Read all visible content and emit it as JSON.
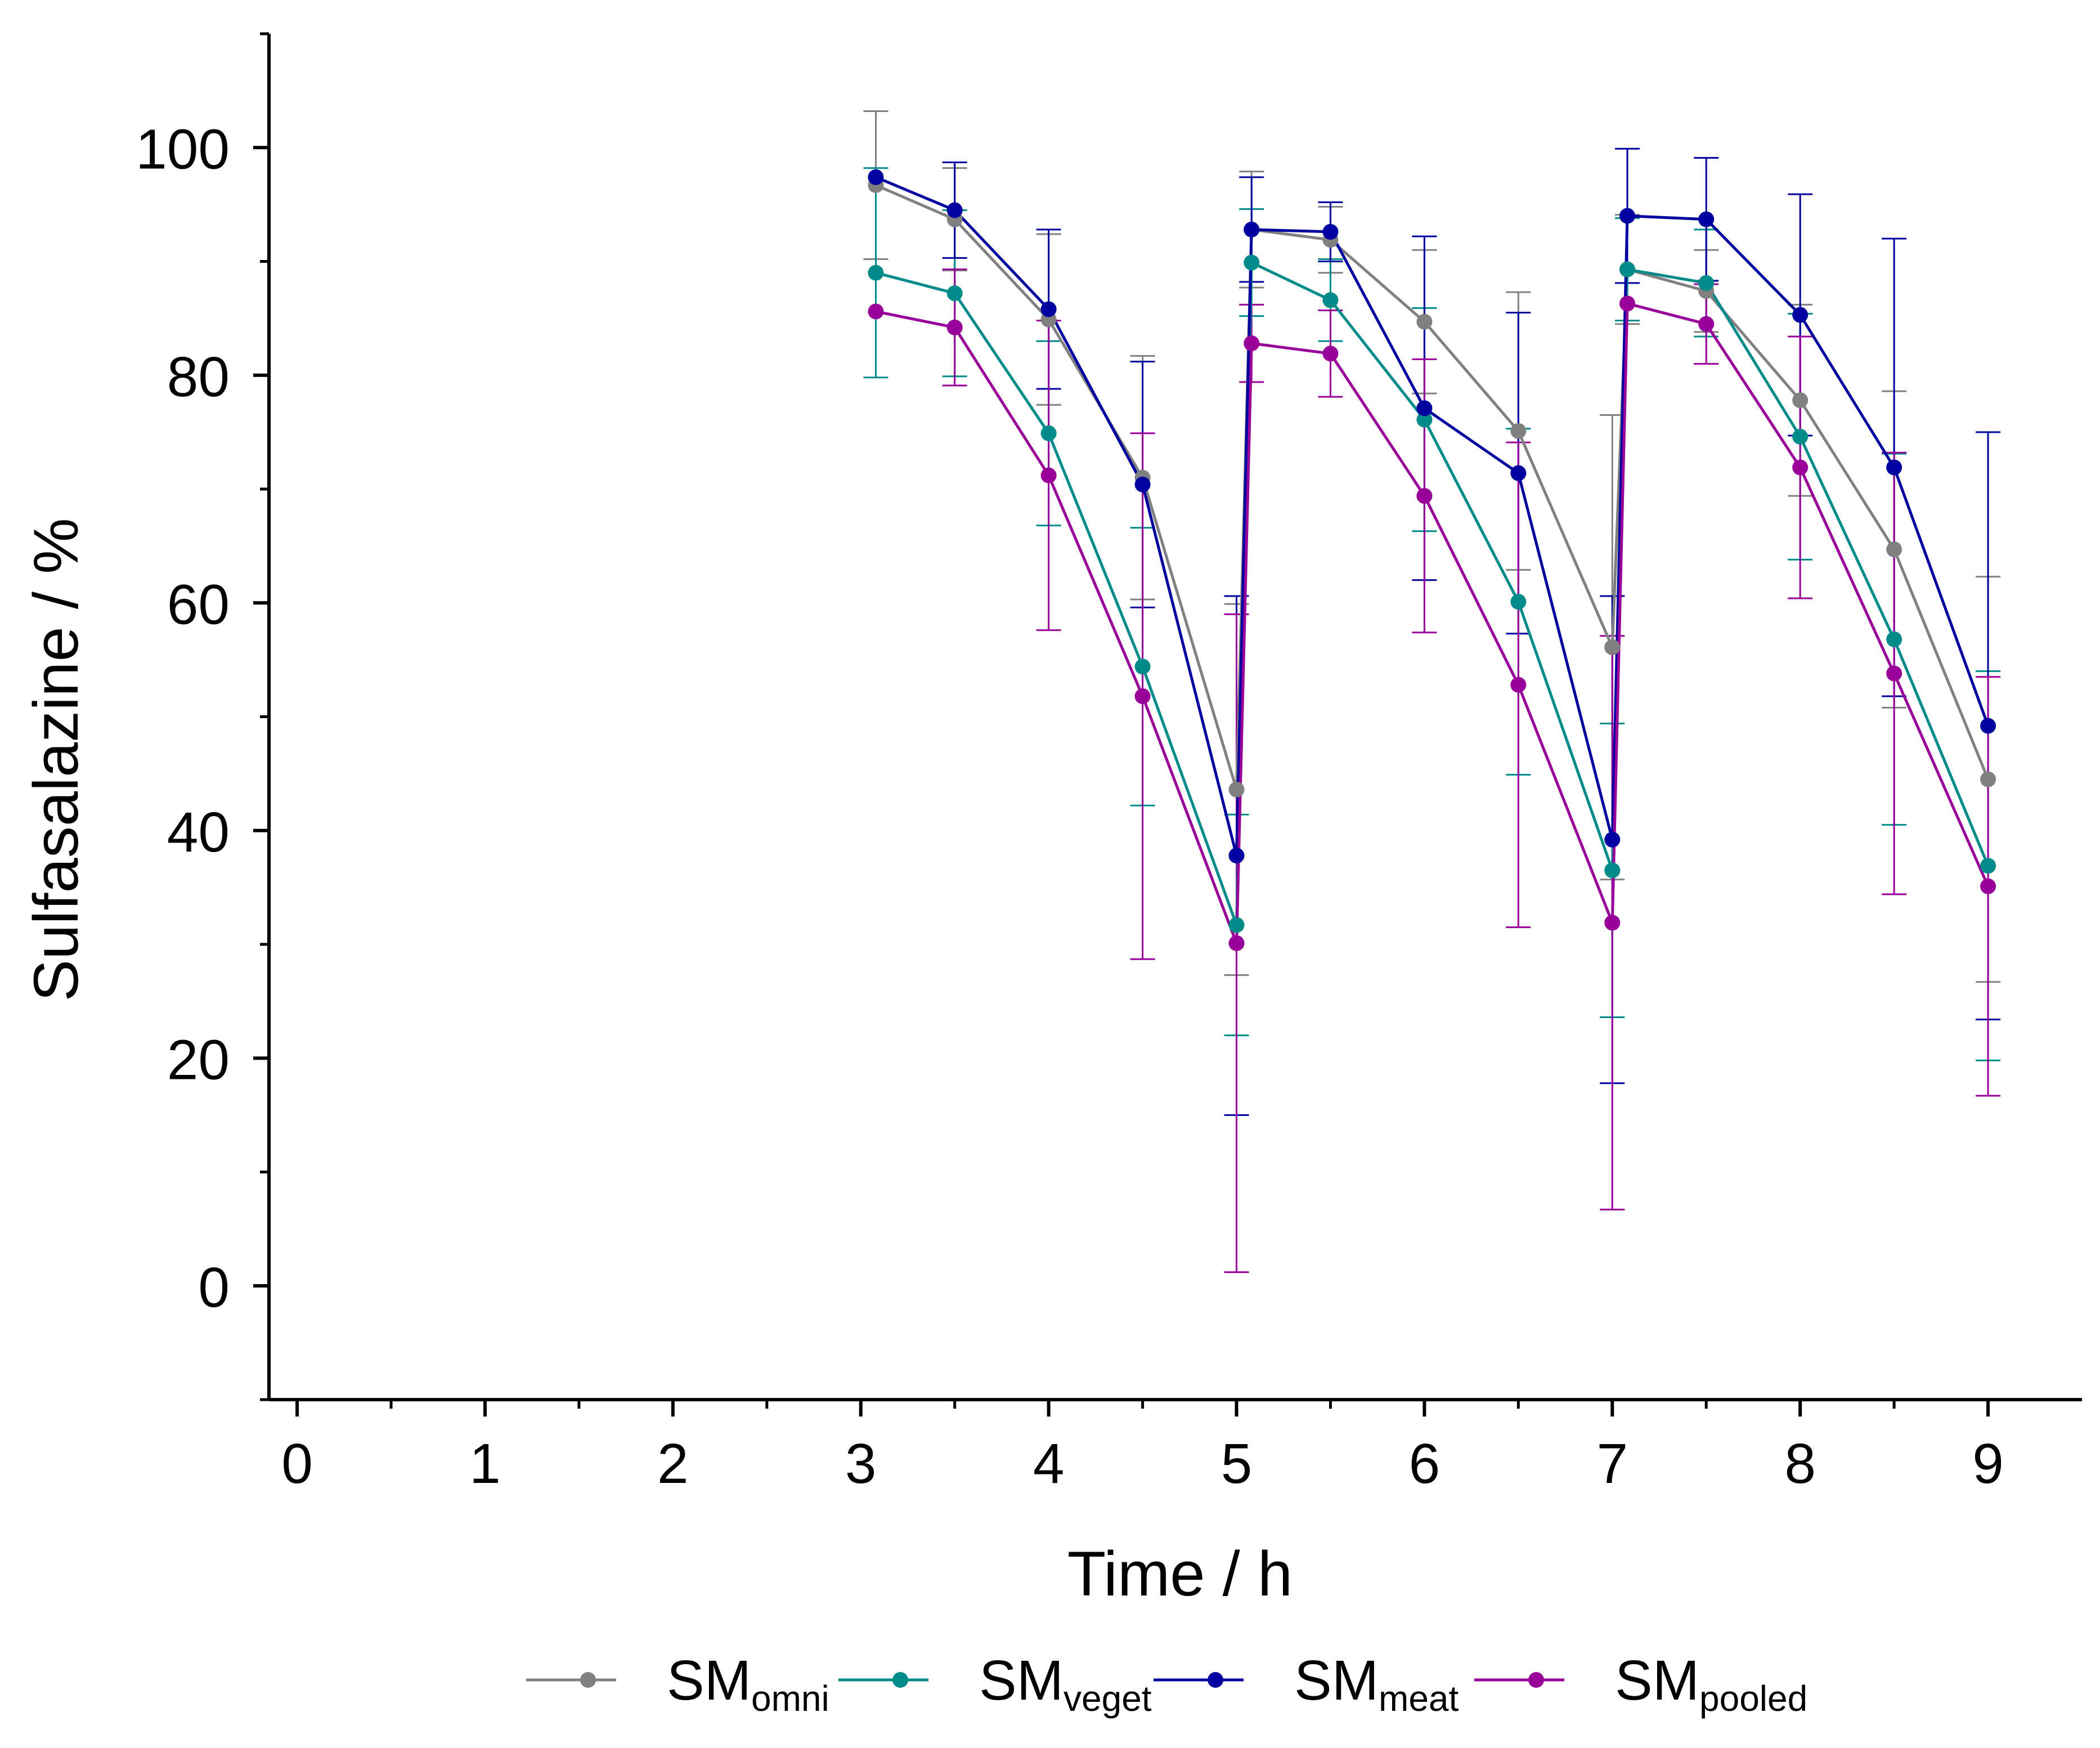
{
  "chart_data": {
    "type": "line",
    "title": "",
    "xlabel": "Time / h",
    "ylabel": "Sulfasalazine / %",
    "xlim": [
      -0.15,
      9.5
    ],
    "ylim": [
      -10,
      110
    ],
    "xticks": [
      0,
      1,
      2,
      3,
      4,
      5,
      6,
      7,
      8,
      9
    ],
    "xtick_labels": [
      "0",
      "1",
      "2",
      "3",
      "4",
      "5",
      "6",
      "7",
      "8",
      "9"
    ],
    "yticks": [
      0,
      20,
      40,
      60,
      80,
      100
    ],
    "ytick_labels": [
      "0",
      "20",
      "40",
      "60",
      "80",
      "100"
    ],
    "grid": false,
    "legend_position": "bottom",
    "series": [
      {
        "name": "SMomni",
        "legend_main": "SM",
        "legend_sub": "omni",
        "color": "#808080",
        "points": [
          {
            "x": 3.08,
            "y": 96.7,
            "err": 6.5
          },
          {
            "x": 3.5,
            "y": 93.7,
            "err": 4.5
          },
          {
            "x": 4.0,
            "y": 84.9,
            "err": 7.5
          },
          {
            "x": 4.5,
            "y": 71.0,
            "err": 10.7
          },
          {
            "x": 5.0,
            "y": 43.6,
            "err": 16.3
          },
          {
            "x": 5.08,
            "y": 92.8,
            "err": 5.1
          },
          {
            "x": 5.5,
            "y": 91.9,
            "err": 2.9
          },
          {
            "x": 6.0,
            "y": 84.7,
            "err": 6.3
          },
          {
            "x": 6.5,
            "y": 75.1,
            "err": 12.2
          },
          {
            "x": 7.0,
            "y": 56.1,
            "err": 20.4
          },
          {
            "x": 7.08,
            "y": 89.3,
            "err": 4.8
          },
          {
            "x": 7.5,
            "y": 87.4,
            "err": 3.6
          },
          {
            "x": 8.0,
            "y": 77.8,
            "err": 8.4
          },
          {
            "x": 8.5,
            "y": 64.7,
            "err": 13.9
          },
          {
            "x": 9.0,
            "y": 44.5,
            "err": 17.8
          }
        ]
      },
      {
        "name": "SMveget",
        "legend_main": "SM",
        "legend_sub": "veget",
        "color": "#008B8B",
        "points": [
          {
            "x": 3.08,
            "y": 89.0,
            "err": 9.2
          },
          {
            "x": 3.5,
            "y": 87.2,
            "err": 7.3
          },
          {
            "x": 4.0,
            "y": 74.9,
            "err": 8.1
          },
          {
            "x": 4.5,
            "y": 54.4,
            "err": 12.2
          },
          {
            "x": 5.0,
            "y": 31.7,
            "err": 9.7
          },
          {
            "x": 5.08,
            "y": 89.9,
            "err": 4.7
          },
          {
            "x": 5.5,
            "y": 86.6,
            "err": 3.6
          },
          {
            "x": 6.0,
            "y": 76.1,
            "err": 9.8
          },
          {
            "x": 6.5,
            "y": 60.1,
            "err": 15.2
          },
          {
            "x": 7.0,
            "y": 36.5,
            "err": 12.9
          },
          {
            "x": 7.08,
            "y": 89.3,
            "err": 4.5
          },
          {
            "x": 7.5,
            "y": 88.1,
            "err": 4.7
          },
          {
            "x": 8.0,
            "y": 74.6,
            "err": 10.8
          },
          {
            "x": 8.5,
            "y": 56.8,
            "err": 16.3
          },
          {
            "x": 9.0,
            "y": 36.9,
            "err": 17.1
          }
        ]
      },
      {
        "name": "SMmeat",
        "legend_main": "SM",
        "legend_sub": "meat",
        "color": "#0000A0",
        "points": [
          {
            "x": 3.08,
            "y": 97.4,
            "err": 0
          },
          {
            "x": 3.5,
            "y": 94.5,
            "err": 4.2
          },
          {
            "x": 4.0,
            "y": 85.8,
            "err": 7.0
          },
          {
            "x": 4.5,
            "y": 70.4,
            "err": 10.8
          },
          {
            "x": 5.0,
            "y": 37.8,
            "err": 22.8
          },
          {
            "x": 5.08,
            "y": 92.8,
            "err": 4.6
          },
          {
            "x": 5.5,
            "y": 92.6,
            "err": 2.6
          },
          {
            "x": 6.0,
            "y": 77.1,
            "err": 15.1
          },
          {
            "x": 6.5,
            "y": 71.4,
            "err": 14.1
          },
          {
            "x": 7.0,
            "y": 39.2,
            "err": 21.4
          },
          {
            "x": 7.08,
            "y": 94.0,
            "err": 5.9
          },
          {
            "x": 7.5,
            "y": 93.7,
            "err": 5.4
          },
          {
            "x": 8.0,
            "y": 85.3,
            "err": 10.6
          },
          {
            "x": 8.5,
            "y": 71.9,
            "err": 20.1
          },
          {
            "x": 9.0,
            "y": 49.2,
            "err": 25.8
          }
        ]
      },
      {
        "name": "SMpooled",
        "legend_main": "SM",
        "legend_sub": "pooled",
        "color": "#990099",
        "points": [
          {
            "x": 3.08,
            "y": 85.6,
            "err": 0
          },
          {
            "x": 3.5,
            "y": 84.2,
            "err": 5.1
          },
          {
            "x": 4.0,
            "y": 71.2,
            "err": 13.6
          },
          {
            "x": 4.5,
            "y": 51.8,
            "err": 23.1
          },
          {
            "x": 5.0,
            "y": 30.1,
            "err": 28.9
          },
          {
            "x": 5.08,
            "y": 82.8,
            "err": 3.4
          },
          {
            "x": 5.5,
            "y": 81.9,
            "err": 3.8
          },
          {
            "x": 6.0,
            "y": 69.4,
            "err": 12.0
          },
          {
            "x": 6.5,
            "y": 52.8,
            "err": 21.3
          },
          {
            "x": 7.0,
            "y": 31.9,
            "err": 25.2
          },
          {
            "x": 7.08,
            "y": 86.3,
            "err": 0
          },
          {
            "x": 7.5,
            "y": 84.5,
            "err": 3.5
          },
          {
            "x": 8.0,
            "y": 71.9,
            "err": 11.5
          },
          {
            "x": 8.5,
            "y": 53.8,
            "err": 19.4
          },
          {
            "x": 9.0,
            "y": 35.1,
            "err": 18.4
          }
        ]
      }
    ]
  }
}
